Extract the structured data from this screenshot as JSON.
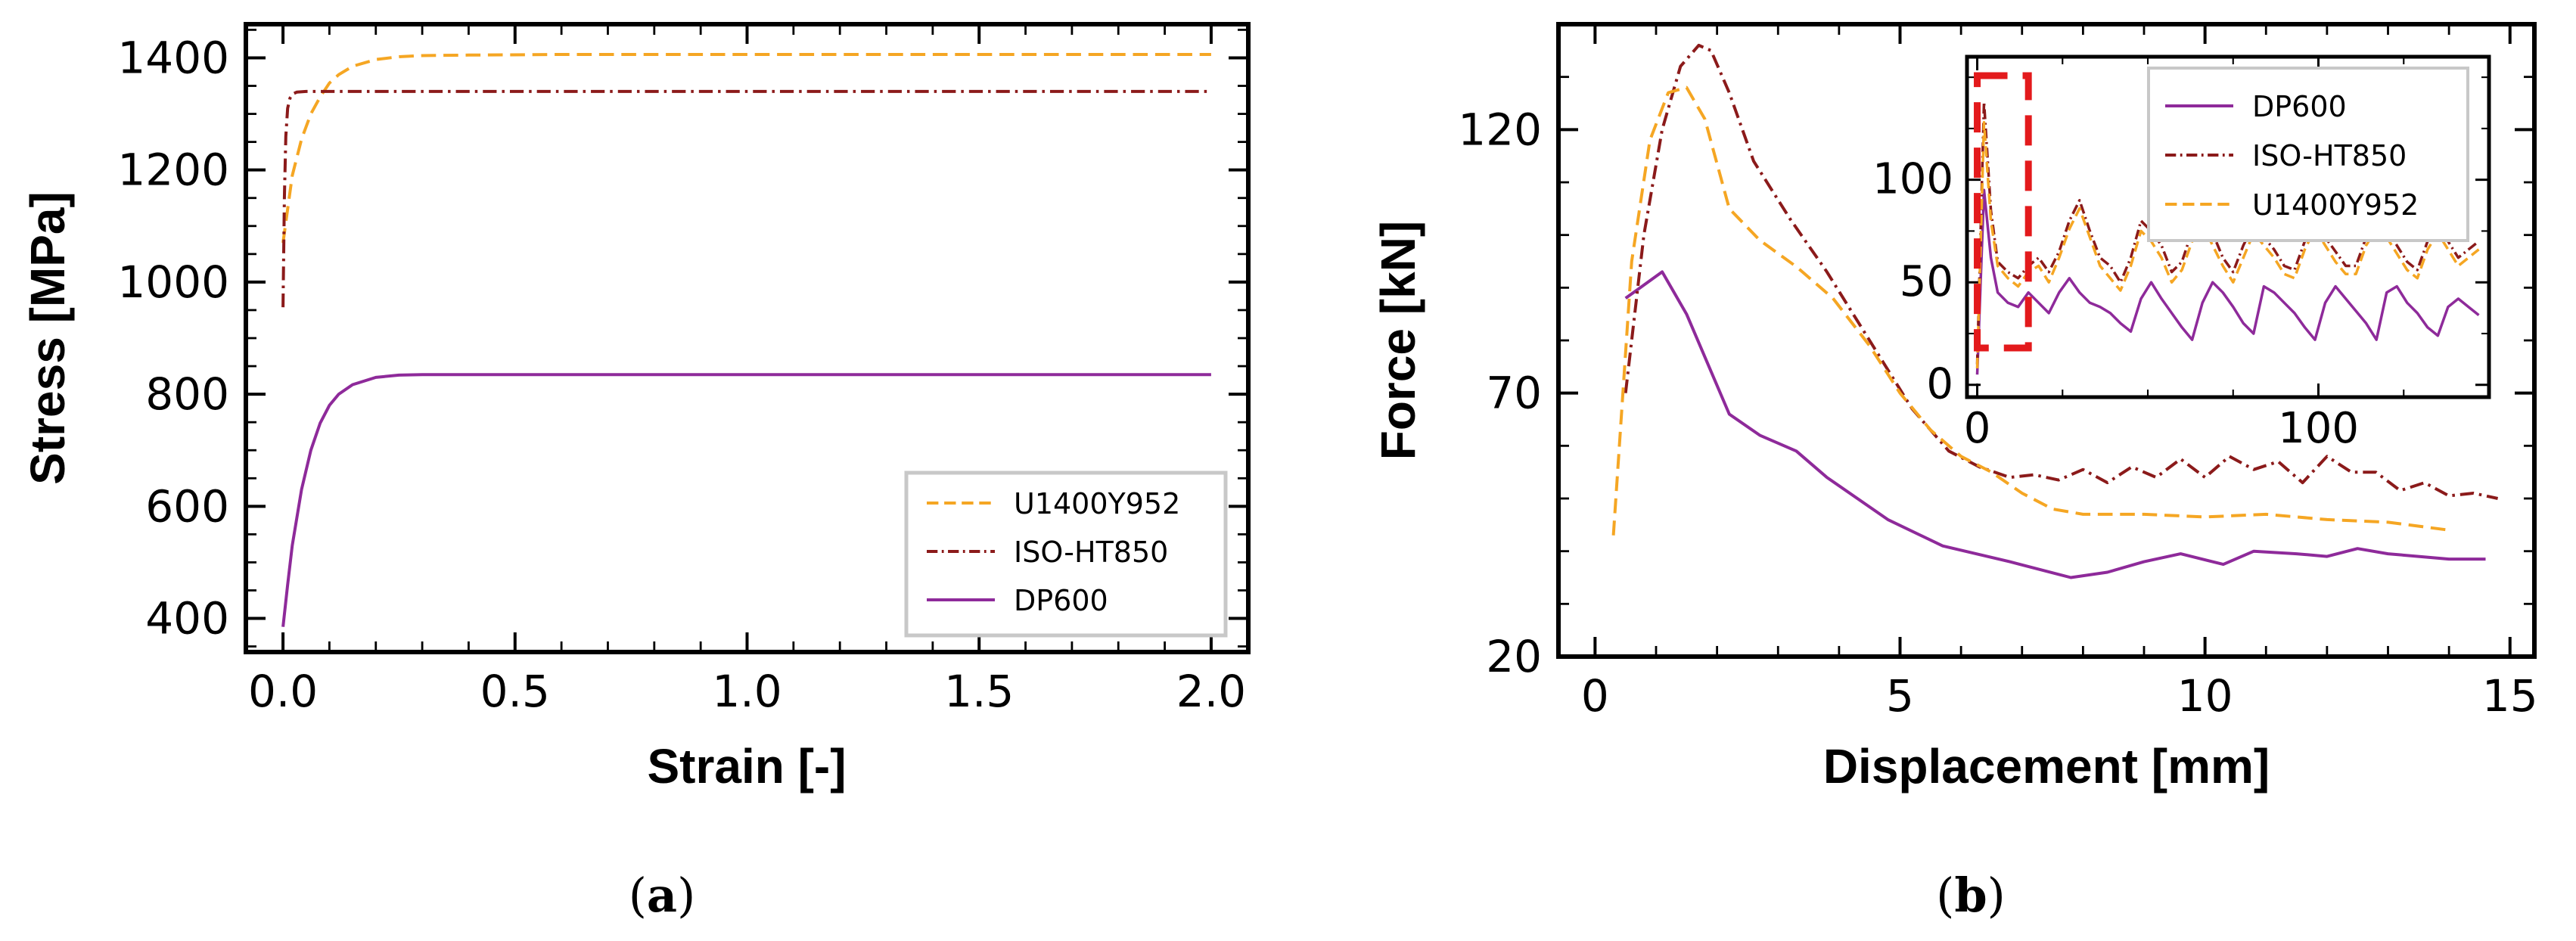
{
  "captions": {
    "a": {
      "open": "(",
      "letter": "a",
      "close": ")"
    },
    "b": {
      "open": "(",
      "letter": "b",
      "close": ")"
    }
  },
  "colors": {
    "DP600": "#8e2a9a",
    "ISO-HT850": "#8b1a1a",
    "U1400Y952": "#f5a623",
    "zoom_box": "#e31a1c"
  },
  "chart_data": [
    {
      "id": "a",
      "type": "line",
      "xlabel": "Strain [-]",
      "ylabel": "Stress [MPa]",
      "xlim": [
        -0.08,
        2.08
      ],
      "ylim": [
        340,
        1460
      ],
      "xticks": [
        0.0,
        0.5,
        1.0,
        1.5,
        2.0
      ],
      "xtick_labels": [
        "0.0",
        "0.5",
        "1.0",
        "1.5",
        "2.0"
      ],
      "yticks": [
        400,
        600,
        800,
        1000,
        1200,
        1400
      ],
      "ytick_labels": [
        "400",
        "600",
        "800",
        "1000",
        "1200",
        "1400"
      ],
      "legend_position": "lower-right",
      "legend_order": [
        "U1400Y952",
        "ISO-HT850",
        "DP600"
      ],
      "series": [
        {
          "name": "U1400Y952",
          "style": "dashed",
          "x": [
            0,
            0.02,
            0.04,
            0.06,
            0.08,
            0.1,
            0.12,
            0.15,
            0.2,
            0.25,
            0.3,
            0.4,
            0.6,
            1.0,
            2.0
          ],
          "y": [
            1070,
            1190,
            1255,
            1300,
            1330,
            1355,
            1370,
            1385,
            1397,
            1402,
            1404,
            1405,
            1406,
            1406,
            1406
          ]
        },
        {
          "name": "ISO-HT850",
          "style": "dashdot",
          "x": [
            0,
            0.003,
            0.006,
            0.01,
            0.015,
            0.02,
            0.03,
            0.05,
            0.1,
            2.0
          ],
          "y": [
            955,
            1150,
            1260,
            1310,
            1328,
            1335,
            1339,
            1340,
            1340,
            1340
          ]
        },
        {
          "name": "DP600",
          "style": "solid",
          "x": [
            0,
            0.01,
            0.02,
            0.04,
            0.06,
            0.08,
            0.1,
            0.12,
            0.15,
            0.2,
            0.25,
            0.3,
            0.4,
            0.6,
            1.0,
            2.0
          ],
          "y": [
            385,
            460,
            530,
            630,
            700,
            748,
            780,
            800,
            817,
            830,
            834,
            835,
            835,
            835,
            835,
            835
          ]
        }
      ]
    },
    {
      "id": "b",
      "type": "line",
      "xlabel": "Displacement [mm]",
      "ylabel": "Force [kN]",
      "xlim": [
        -0.6,
        15.4
      ],
      "ylim": [
        20,
        140
      ],
      "xticks": [
        0,
        5,
        10,
        15
      ],
      "xtick_labels": [
        "0",
        "5",
        "10",
        "15"
      ],
      "yticks": [
        20,
        70,
        120
      ],
      "ytick_labels": [
        "20",
        "70",
        "120"
      ],
      "series": [
        {
          "name": "DP600",
          "style": "solid",
          "x": [
            0.5,
            1.1,
            1.5,
            2.2,
            2.7,
            3.3,
            3.8,
            4.8,
            5.7,
            6.8,
            7.8,
            8.4,
            9.0,
            9.6,
            10.3,
            10.8,
            11.5,
            12.0,
            12.5,
            13.0,
            13.5,
            14.0,
            14.6
          ],
          "y": [
            88,
            93,
            85,
            66,
            62,
            59,
            54,
            46,
            41,
            38,
            35,
            36,
            38,
            39.5,
            37.5,
            40,
            39.5,
            39,
            40.5,
            39.5,
            39,
            38.5,
            38.5
          ]
        },
        {
          "name": "ISO-HT850",
          "style": "dashdot",
          "x": [
            0.5,
            0.8,
            1.1,
            1.4,
            1.7,
            1.9,
            2.2,
            2.6,
            3.2,
            3.8,
            4.5,
            5.2,
            5.8,
            6.3,
            6.8,
            7.2,
            7.6,
            8.0,
            8.4,
            8.8,
            9.2,
            9.6,
            10.0,
            10.4,
            10.8,
            11.2,
            11.6,
            12.0,
            12.4,
            12.8,
            13.2,
            13.6,
            14.0,
            14.4,
            14.8
          ],
          "y": [
            70,
            100,
            120,
            132,
            136,
            135,
            127,
            114,
            103,
            93,
            80,
            67,
            59,
            56,
            54,
            54.5,
            53.5,
            55.5,
            53,
            56,
            54,
            57.5,
            54,
            58,
            55.5,
            57,
            53,
            58,
            55,
            55,
            51.5,
            53,
            50.5,
            51,
            50
          ]
        },
        {
          "name": "U1400Y952",
          "style": "dashed",
          "x": [
            0.3,
            0.6,
            0.9,
            1.2,
            1.5,
            1.8,
            2.2,
            2.7,
            3.3,
            3.9,
            4.5,
            5.0,
            5.5,
            6.0,
            6.5,
            7.0,
            7.5,
            8.0,
            9.0,
            10.0,
            11.0,
            12.0,
            13.0,
            14.0
          ],
          "y": [
            43,
            95,
            118,
            127,
            128,
            122,
            105,
            99,
            94,
            88,
            79,
            70,
            63,
            58,
            55,
            51,
            48,
            47,
            47,
            46.5,
            47,
            46,
            45.5,
            44
          ]
        }
      ],
      "inset": {
        "xlim": [
          -3,
          150
        ],
        "ylim": [
          -6,
          160
        ],
        "xticks": [
          0,
          100
        ],
        "xtick_labels": [
          "0",
          "100"
        ],
        "yticks": [
          0,
          50,
          100
        ],
        "ytick_labels": [
          "0",
          "50",
          "100"
        ],
        "zoom_box": {
          "x": [
            0,
            15
          ],
          "y": [
            18,
            160
          ]
        },
        "legend_position": "top-right",
        "legend_order": [
          "DP600",
          "ISO-HT850",
          "U1400Y952"
        ],
        "series": [
          {
            "name": "DP600",
            "style": "solid",
            "x": [
              0,
              2,
              4,
              6,
              9,
              12,
              15,
              18,
              21,
              24,
              27,
              30,
              33,
              36,
              39,
              42,
              45,
              48,
              51,
              54,
              57,
              60,
              63,
              66,
              69,
              72,
              75,
              78,
              81,
              84,
              87,
              90,
              93,
              96,
              99,
              102,
              105,
              108,
              111,
              114,
              117,
              120,
              123,
              126,
              129,
              132,
              135,
              138,
              141,
              144,
              147
            ],
            "y": [
              5,
              95,
              62,
              45,
              40,
              38,
              45,
              40,
              35,
              45,
              52,
              45,
              40,
              38,
              35,
              30,
              26,
              42,
              50,
              42,
              35,
              28,
              22,
              40,
              50,
              45,
              38,
              30,
              25,
              48,
              45,
              40,
              35,
              28,
              22,
              40,
              48,
              42,
              36,
              30,
              22,
              45,
              48,
              40,
              35,
              28,
              24,
              38,
              42,
              38,
              34
            ]
          },
          {
            "name": "ISO-HT850",
            "style": "dashdot",
            "x": [
              0,
              2,
              4,
              6,
              9,
              12,
              15,
              18,
              21,
              24,
              27,
              30,
              33,
              36,
              39,
              42,
              45,
              48,
              51,
              54,
              57,
              60,
              63,
              66,
              69,
              72,
              75,
              78,
              81,
              84,
              87,
              90,
              93,
              96,
              99,
              102,
              105,
              108,
              111,
              114,
              117,
              120,
              123,
              126,
              129,
              132,
              135,
              138,
              141,
              144,
              147
            ],
            "y": [
              10,
              138,
              85,
              60,
              55,
              52,
              58,
              62,
              55,
              65,
              80,
              90,
              75,
              62,
              58,
              50,
              62,
              80,
              75,
              68,
              55,
              60,
              75,
              82,
              74,
              62,
              55,
              68,
              78,
              72,
              66,
              58,
              56,
              70,
              80,
              72,
              65,
              58,
              58,
              72,
              80,
              76,
              68,
              60,
              56,
              70,
              78,
              70,
              62,
              66,
              70
            ]
          },
          {
            "name": "U1400Y952",
            "style": "dashed",
            "x": [
              0,
              2,
              4,
              6,
              9,
              12,
              15,
              18,
              21,
              24,
              27,
              30,
              33,
              36,
              39,
              42,
              45,
              48,
              51,
              54,
              57,
              60,
              63,
              66,
              69,
              72,
              75,
              78,
              81,
              84,
              87,
              90,
              93,
              96,
              99,
              102,
              105,
              108,
              111,
              114,
              117,
              120,
              123,
              126,
              129,
              132,
              135,
              138,
              141,
              144,
              147
            ],
            "y": [
              8,
              128,
              80,
              58,
              52,
              48,
              55,
              58,
              50,
              62,
              76,
              86,
              72,
              58,
              52,
              46,
              58,
              75,
              70,
              62,
              50,
              56,
              70,
              78,
              68,
              58,
              50,
              62,
              74,
              68,
              62,
              54,
              52,
              66,
              76,
              68,
              60,
              54,
              54,
              68,
              76,
              72,
              64,
              56,
              52,
              66,
              74,
              66,
              58,
              62,
              66
            ]
          }
        ]
      }
    }
  ]
}
